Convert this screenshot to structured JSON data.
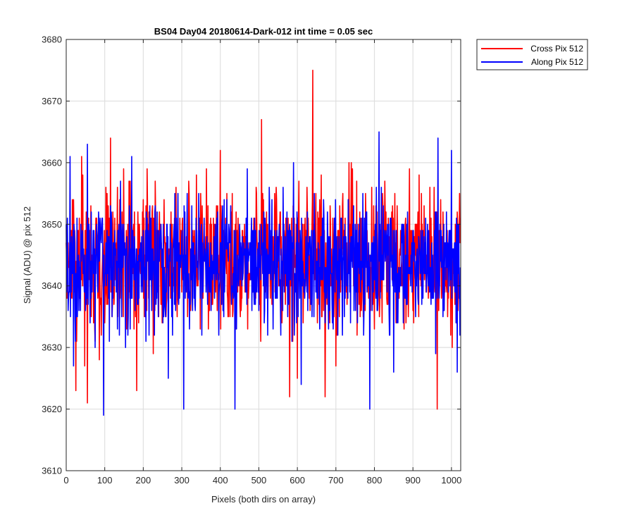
{
  "chart_data": {
    "type": "line",
    "title": "BS04 Day04 20180614-Dark-012 int time = 0.05 sec",
    "xlabel": "Pixels (both dirs on array)",
    "ylabel": "Signal (ADU) @ pix 512",
    "xlim": [
      0,
      1024
    ],
    "ylim": [
      3610,
      3680
    ],
    "xticks": [
      "0",
      "100",
      "200",
      "300",
      "400",
      "500",
      "600",
      "700",
      "800",
      "900",
      "1000"
    ],
    "yticks": [
      "3610",
      "3620",
      "3630",
      "3640",
      "3650",
      "3660",
      "3670",
      "3680"
    ],
    "grid": true,
    "legend_position": "outside-top-right",
    "series": [
      {
        "name": "Cross Pix 512",
        "color": "#ff0000",
        "mean": 3644,
        "spread": 5.5,
        "peaks": [
          [
            640,
            3675
          ],
          [
            507,
            3667
          ],
          [
            115,
            3664
          ],
          [
            40,
            3661
          ],
          [
            734,
            3660
          ],
          [
            740,
            3660
          ],
          [
            400,
            3662
          ],
          [
            210,
            3659
          ]
        ],
        "troughs": [
          [
            963,
            3620
          ],
          [
            55,
            3621
          ],
          [
            580,
            3622
          ],
          [
            672,
            3622
          ],
          [
            183,
            3623
          ],
          [
            25,
            3623
          ],
          [
            600,
            3625
          ],
          [
            700,
            3627
          ]
        ]
      },
      {
        "name": "Along Pix 512",
        "color": "#0000ff",
        "mean": 3643.5,
        "spread": 5.0,
        "peaks": [
          [
            55,
            3663
          ],
          [
            965,
            3664
          ],
          [
            812,
            3665
          ],
          [
            1000,
            3662
          ],
          [
            10,
            3661
          ],
          [
            170,
            3661
          ],
          [
            590,
            3660
          ],
          [
            470,
            3659
          ]
        ],
        "troughs": [
          [
            97,
            3619
          ],
          [
            305,
            3620
          ],
          [
            438,
            3620
          ],
          [
            788,
            3620
          ],
          [
            1015,
            3626
          ],
          [
            265,
            3625
          ],
          [
            610,
            3624
          ],
          [
            850,
            3626
          ]
        ]
      }
    ]
  }
}
